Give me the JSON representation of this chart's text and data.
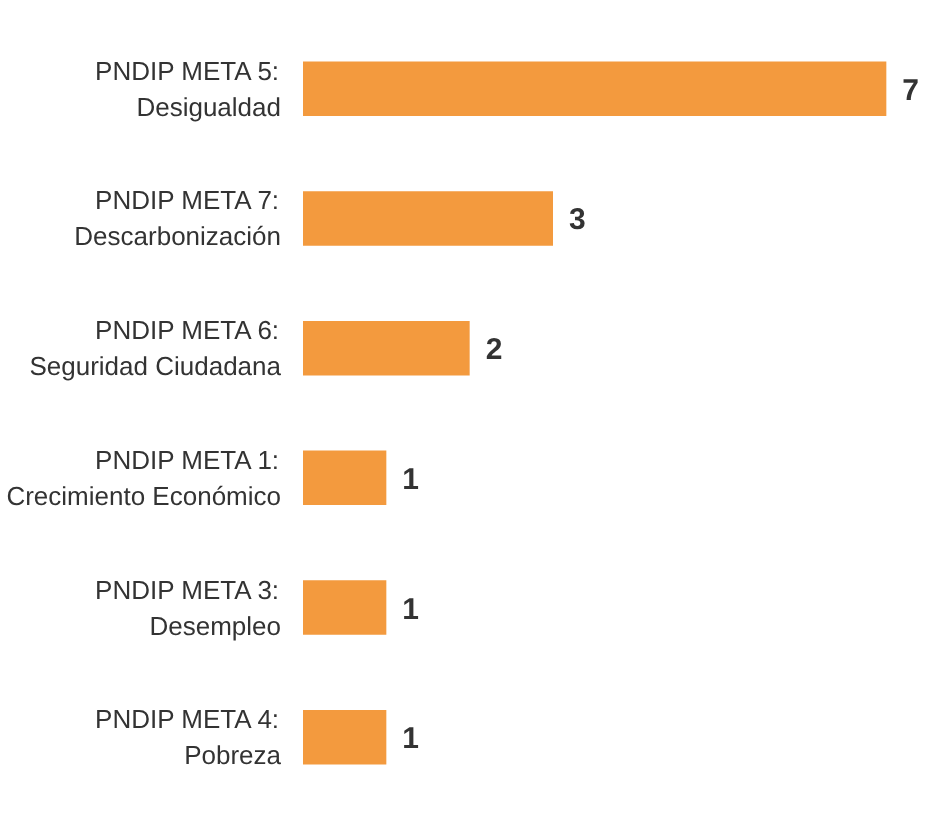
{
  "chart_data": {
    "type": "bar",
    "orientation": "horizontal",
    "categories": [
      "PNDIP META 5:\nDesigualdad",
      "PNDIP META 7:\nDescarbonización",
      "PNDIP META 6:\nSeguridad Ciudadana",
      "PNDIP META 1:\nCrecimiento Económico",
      "PNDIP META 3:\nDesempleo",
      "PNDIP META 4:\nPobreza"
    ],
    "values": [
      7,
      3,
      2,
      1,
      1,
      1
    ],
    "color": "#f39a3e",
    "data_labels": true
  }
}
